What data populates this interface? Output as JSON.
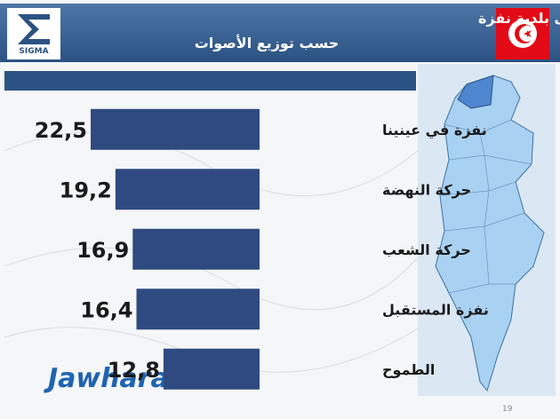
{
  "logo": "SIGMA",
  "watermark": "Jawhara FM",
  "page_number": "19",
  "chart_data": {
    "type": "barh",
    "title": [
      "الانتخابات البلدية تقديرات النتائج على مستوى بلدية نفزة",
      "حسب توزيع الأصوات"
    ],
    "categories": [
      "نفزة في عينينا",
      "حركة النهضة",
      "حركة الشعب",
      "نفزة المستقبل",
      "الطموح"
    ],
    "values": [
      22.5,
      19.2,
      16.9,
      16.4,
      12.8
    ],
    "value_labels": [
      "22,5",
      "19,2",
      "16,9",
      "16,4",
      "12,8"
    ],
    "color": "#2f4a80"
  }
}
